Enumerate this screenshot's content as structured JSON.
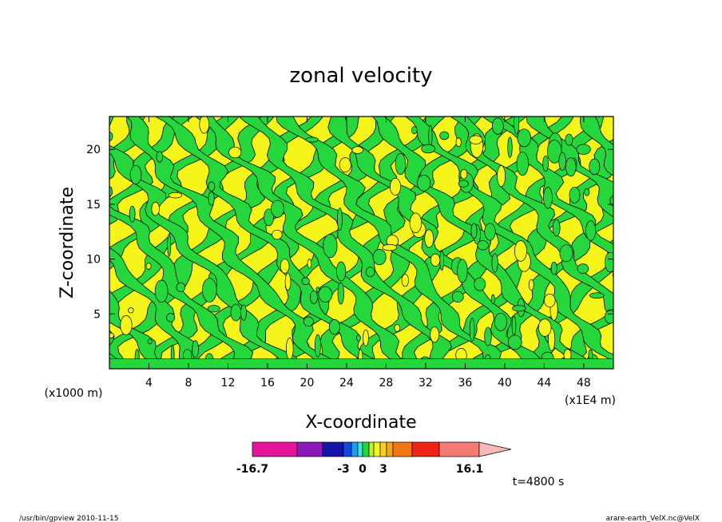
{
  "chart_data": {
    "type": "heatmap",
    "title": "zonal velocity",
    "xlabel": "X-coordinate",
    "ylabel": "Z-coordinate",
    "x_unit_label": "(x1E4 m)",
    "y_unit_label": "(x1000 m)",
    "xlim": [
      0,
      51
    ],
    "ylim": [
      0,
      23
    ],
    "x_ticks": [
      "4",
      "8",
      "12",
      "16",
      "20",
      "24",
      "28",
      "32",
      "36",
      "40",
      "44",
      "48"
    ],
    "y_ticks": [
      "5",
      "10",
      "15",
      "20"
    ],
    "colorbar": {
      "min_label": "-16.7",
      "max_label": "16.1",
      "tick_labels": [
        "-3",
        "0",
        "3"
      ],
      "colors": [
        "#e6139e",
        "#8a1ab8",
        "#1414a8",
        "#1248dc",
        "#1a9cf0",
        "#40e6d2",
        "#25d63d",
        "#c6ed2d",
        "#f5f51c",
        "#f8d01a",
        "#f0a818",
        "#f57514",
        "#f02414",
        "#f47a74"
      ],
      "arrow_color": "#f7b8b8"
    },
    "time_label": "t=4800 s",
    "footer_left": "/usr/bin/gpview   2010-11-15",
    "footer_right": "arare-earth_VelX.nc@VelX"
  }
}
